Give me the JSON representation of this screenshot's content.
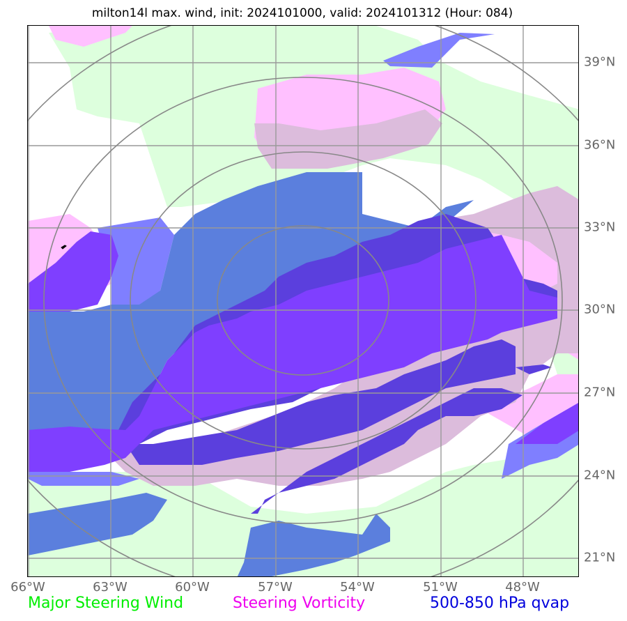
{
  "title": "milton14l max. wind, init: 2024101000, valid: 2024101312 (Hour: 084)",
  "lat_labels": [
    "39°N",
    "36°N",
    "33°N",
    "30°N",
    "27°N",
    "24°N",
    "21°N"
  ],
  "lon_labels": [
    "66°W",
    "63°W",
    "60°W",
    "57°W",
    "54°W",
    "51°W",
    "48°W"
  ],
  "legend": {
    "wind": "Major Steering Wind",
    "vorticity": "Steering Vorticity",
    "qvap": "500-850 hPa qvap"
  },
  "colors": {
    "wind_fill": "#ddffdd",
    "vorticity_fill": "#ffc0ff",
    "overlap_fill": "#dcbcdc",
    "qvap_light": "#7f7fff",
    "qvap_mid": "#5b7fdd",
    "qvap_dark": "#5b3fdd",
    "qvap_violet": "#7f3fff",
    "legend_wind": "#00ee00",
    "legend_vorticity": "#ee00ee",
    "legend_qvap": "#0000dd",
    "grid": "#999999",
    "range_rings": "#888888"
  }
}
